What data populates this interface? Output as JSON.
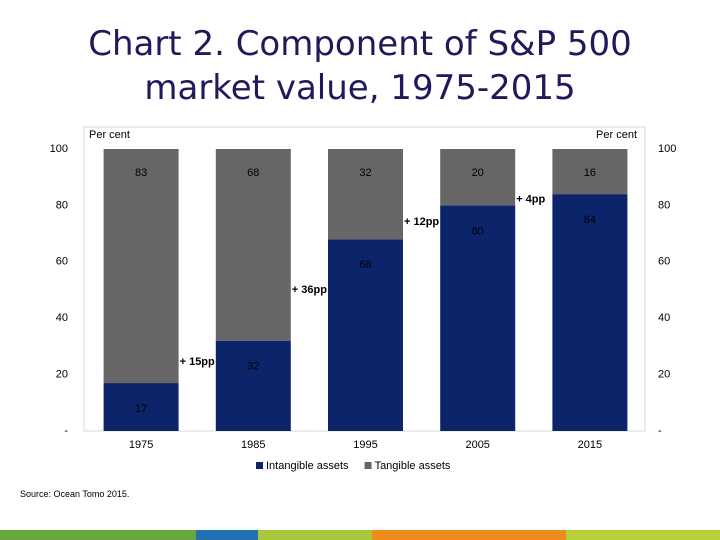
{
  "chart_data": {
    "type": "bar",
    "stacked": true,
    "title": "Chart 2. Component of S&P 500 market value, 1975-2015",
    "ylabel": "Per cent",
    "y2label": "Per cent",
    "categories": [
      "1975",
      "1985",
      "1995",
      "2005",
      "2015"
    ],
    "series": [
      {
        "name": "Intangible assets",
        "color": "#0c2469",
        "values": [
          17,
          32,
          68,
          80,
          84
        ]
      },
      {
        "name": "Tangible assets",
        "color": "#666666",
        "values": [
          83,
          68,
          32,
          20,
          16
        ]
      }
    ],
    "annotations": [
      "+ 15pp",
      "+ 36pp",
      "+ 12pp",
      "+ 4pp"
    ],
    "ylim": [
      0,
      100
    ],
    "yticks": [
      {
        "value": 0,
        "label": "-"
      },
      20,
      40,
      60,
      80,
      100
    ],
    "y2lim": [
      0,
      100
    ],
    "y2ticks": [
      {
        "value": 0,
        "label": "-"
      },
      20,
      40,
      60,
      80,
      100
    ],
    "legend": "bottom",
    "source": "Source: Ocean Tomo 2015."
  }
}
